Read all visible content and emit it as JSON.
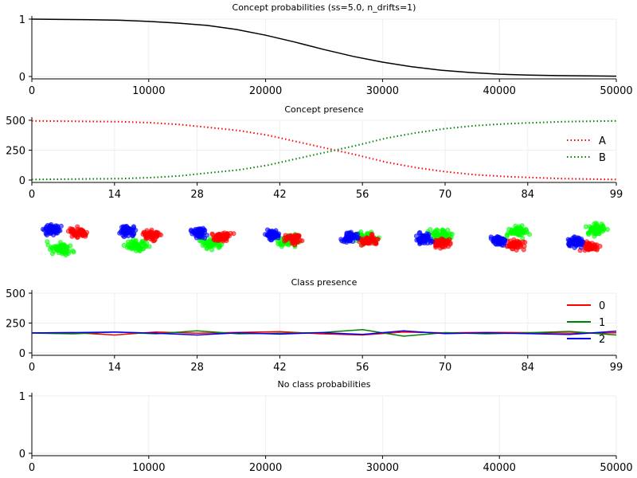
{
  "chart_data": [
    {
      "type": "line",
      "title": "Concept probabilities (ss=5.0, n_drifts=1)",
      "xlim": [
        0,
        50000
      ],
      "ylim": [
        0,
        1
      ],
      "xticks": [
        0,
        10000,
        20000,
        30000,
        40000,
        50000
      ],
      "yticks": [
        0,
        1
      ],
      "grid": true,
      "series": [
        {
          "color": "#000000",
          "style": "solid",
          "x": [
            0,
            2500,
            5000,
            7500,
            10000,
            12500,
            15000,
            17500,
            20000,
            22500,
            25000,
            27500,
            30000,
            32500,
            35000,
            37500,
            40000,
            42500,
            45000,
            47500,
            50000
          ],
          "values": [
            1.0,
            0.995,
            0.99,
            0.98,
            0.96,
            0.93,
            0.89,
            0.82,
            0.72,
            0.6,
            0.47,
            0.35,
            0.25,
            0.17,
            0.11,
            0.07,
            0.04,
            0.025,
            0.015,
            0.01,
            0.005
          ]
        }
      ]
    },
    {
      "type": "line",
      "title": "Concept presence",
      "xlim": [
        0,
        99
      ],
      "ylim": [
        0,
        500
      ],
      "xticks": [
        0,
        14,
        28,
        42,
        56,
        70,
        84,
        99
      ],
      "yticks": [
        0,
        250,
        500
      ],
      "grid": true,
      "legend": "right",
      "series": [
        {
          "name": "A",
          "color": "#ff0000",
          "style": "dotted",
          "x": [
            0,
            5,
            10,
            15,
            20,
            25,
            30,
            35,
            40,
            45,
            50,
            55,
            60,
            65,
            70,
            75,
            80,
            85,
            90,
            95,
            99
          ],
          "values": [
            495,
            493,
            490,
            488,
            480,
            465,
            440,
            415,
            375,
            320,
            265,
            210,
            150,
            105,
            70,
            45,
            30,
            20,
            12,
            8,
            5
          ]
        },
        {
          "name": "B",
          "color": "#008000",
          "style": "dotted",
          "x": [
            0,
            5,
            10,
            15,
            20,
            25,
            30,
            35,
            40,
            45,
            50,
            55,
            60,
            65,
            70,
            75,
            80,
            85,
            90,
            95,
            99
          ],
          "values": [
            5,
            7,
            10,
            12,
            20,
            35,
            60,
            85,
            125,
            180,
            235,
            290,
            350,
            395,
            430,
            455,
            470,
            480,
            488,
            492,
            495
          ]
        }
      ]
    },
    {
      "type": "line",
      "title": "Class presence",
      "xlim": [
        0,
        99
      ],
      "ylim": [
        0,
        500
      ],
      "xticks": [
        0,
        14,
        28,
        42,
        56,
        70,
        84,
        99
      ],
      "yticks": [
        0,
        250,
        500
      ],
      "grid": true,
      "legend": "right",
      "series": [
        {
          "name": "0",
          "color": "#ff0000",
          "style": "solid",
          "x": [
            0,
            7,
            14,
            21,
            28,
            35,
            42,
            49,
            56,
            63,
            70,
            77,
            84,
            91,
            99
          ],
          "values": [
            167,
            170,
            150,
            175,
            165,
            172,
            178,
            160,
            150,
            175,
            168,
            172,
            170,
            166,
            168
          ]
        },
        {
          "name": "1",
          "color": "#008000",
          "style": "solid",
          "x": [
            0,
            7,
            14,
            21,
            28,
            35,
            42,
            49,
            56,
            63,
            70,
            77,
            84,
            91,
            99
          ],
          "values": [
            166,
            160,
            175,
            160,
            185,
            160,
            165,
            170,
            195,
            140,
            170,
            160,
            168,
            180,
            150
          ]
        },
        {
          "name": "2",
          "color": "#0000ff",
          "style": "solid",
          "x": [
            0,
            7,
            14,
            21,
            28,
            35,
            42,
            49,
            56,
            63,
            70,
            77,
            84,
            91,
            99
          ],
          "values": [
            167,
            170,
            175,
            165,
            150,
            168,
            157,
            170,
            155,
            185,
            162,
            168,
            162,
            154,
            182
          ]
        }
      ]
    },
    {
      "type": "line",
      "title": "No class probabilities",
      "xlim": [
        0,
        50000
      ],
      "ylim": [
        0,
        1
      ],
      "xticks": [
        0,
        10000,
        20000,
        30000,
        40000,
        50000
      ],
      "yticks": [
        0,
        1
      ],
      "grid": true,
      "series": []
    }
  ]
}
